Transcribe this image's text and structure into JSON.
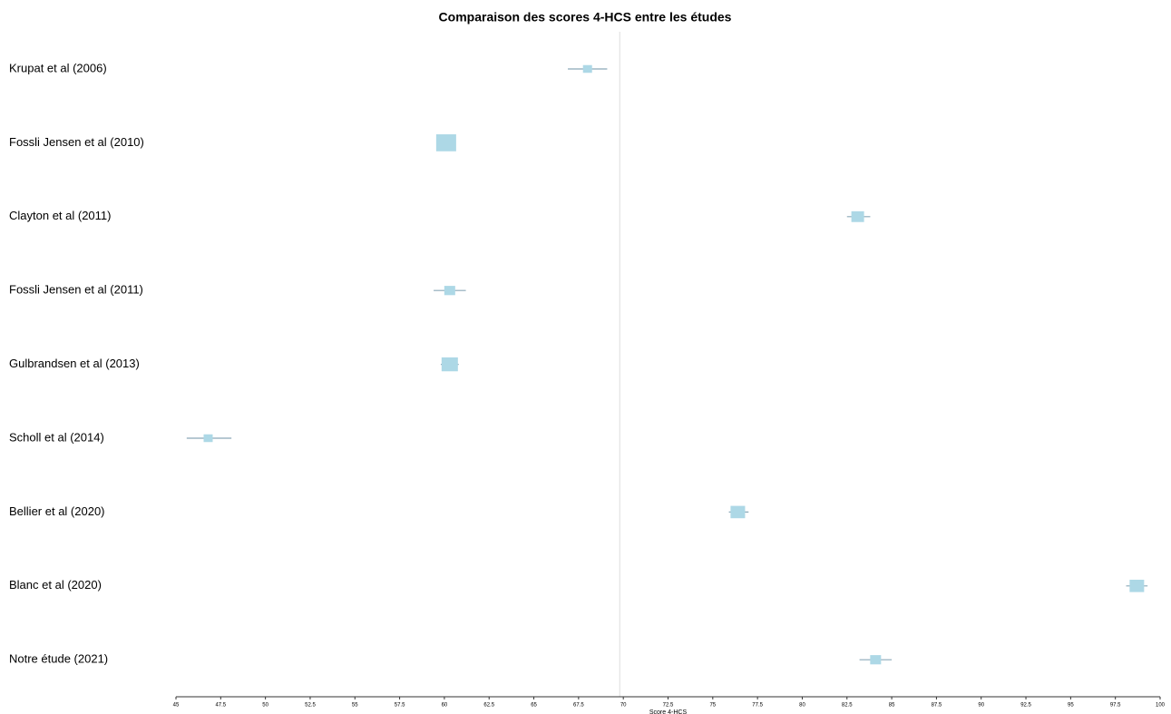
{
  "chart_data": {
    "type": "forest",
    "title": "Comparaison des scores 4-HCS entre les études",
    "xlabel": "Score 4-HCS",
    "categories": [
      "Krupat et al (2006)",
      "Fossli Jensen et al (2010)",
      "Clayton et al (2011)",
      "Fossli Jensen et al (2011)",
      "Gulbrandsen et al (2013)",
      "Scholl et al (2014)",
      "Bellier et al (2020)",
      "Blanc et al (2020)",
      "Notre étude (2021)"
    ],
    "values": [
      68.0,
      60.1,
      83.1,
      60.3,
      60.3,
      46.8,
      76.4,
      98.7,
      84.1
    ],
    "lower": [
      66.9,
      59.8,
      82.5,
      59.4,
      59.8,
      45.6,
      75.9,
      98.1,
      83.2
    ],
    "upper": [
      69.1,
      60.4,
      83.8,
      61.2,
      60.8,
      48.1,
      77.0,
      99.3,
      85.0
    ],
    "weights": [
      5,
      11,
      7,
      6,
      9,
      5,
      8,
      8,
      6
    ],
    "reference": 69.8,
    "color": "#add8e6",
    "line_color": "#8aa8b8",
    "xlim": [
      45,
      100
    ],
    "xticks": [
      45,
      47.5,
      50,
      52.5,
      55,
      57.5,
      60,
      62.5,
      65,
      67.5,
      70,
      72.5,
      75,
      77.5,
      80,
      82.5,
      85,
      87.5,
      90,
      92.5,
      95,
      97.5,
      100
    ]
  }
}
